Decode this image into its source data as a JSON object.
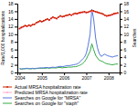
{
  "chart_data": {
    "type": "line",
    "ylabel": "Rate/1,000 hospitalizations",
    "y2label": "Searches",
    "xlim": [
      2003.9,
      2008.5
    ],
    "xticks": [
      2004,
      2005,
      2006,
      2007,
      2008
    ],
    "ylim": [
      0,
      18
    ],
    "yticks": [
      0,
      2,
      4,
      6,
      8,
      10,
      12,
      14,
      16,
      18
    ],
    "y2lim": [
      0,
      18
    ],
    "y2ticks": [
      0,
      2,
      4,
      6,
      8,
      10,
      12,
      14,
      16,
      18
    ],
    "grid": false,
    "legend": "bottom",
    "x": [
      2004.0,
      2004.08,
      2004.17,
      2004.25,
      2004.33,
      2004.42,
      2004.5,
      2004.58,
      2004.67,
      2004.75,
      2004.83,
      2004.92,
      2005.0,
      2005.08,
      2005.17,
      2005.25,
      2005.33,
      2005.42,
      2005.5,
      2005.58,
      2005.67,
      2005.75,
      2005.83,
      2005.92,
      2006.0,
      2006.08,
      2006.17,
      2006.25,
      2006.33,
      2006.42,
      2006.5,
      2006.58,
      2006.67,
      2006.75,
      2006.83,
      2006.92,
      2007.0,
      2007.08,
      2007.17,
      2007.25,
      2007.33,
      2007.42,
      2007.5,
      2007.58,
      2007.67,
      2007.75,
      2007.83,
      2007.92,
      2008.0,
      2008.08,
      2008.17,
      2008.25,
      2008.33,
      2008.42
    ],
    "series": [
      {
        "name": "Actual MRSA hospitalization rate",
        "color": "#cc2200",
        "marker": "circle",
        "values": [
          11.5,
          11.8,
          12.0,
          12.3,
          12.1,
          12.4,
          12.2,
          12.5,
          12.6,
          13.0,
          13.2,
          13.5,
          13.3,
          13.5,
          13.8,
          14.0,
          13.7,
          14.2,
          14.5,
          14.3,
          14.1,
          14.5,
          14.8,
          14.6,
          14.7,
          14.9,
          15.0,
          15.2,
          15.0,
          15.3,
          15.5,
          15.4,
          15.6,
          15.7,
          15.8,
          15.9,
          15.7,
          15.8,
          16.0,
          16.2,
          16.1,
          15.9,
          15.8,
          15.6,
          15.5,
          15.3,
          15.0,
          14.8,
          14.9,
          15.0,
          15.2,
          15.4,
          15.5,
          15.6
        ]
      },
      {
        "name": "Predicted MRSA hospitalization rate",
        "color": "#ffaacc",
        "marker": "circle",
        "values": [
          11.3,
          11.6,
          11.9,
          12.1,
          12.0,
          12.2,
          12.1,
          12.4,
          12.5,
          12.9,
          13.1,
          13.3,
          13.2,
          13.4,
          13.7,
          13.9,
          13.6,
          14.0,
          14.3,
          14.2,
          14.0,
          14.4,
          14.7,
          14.5,
          14.6,
          14.8,
          14.9,
          15.1,
          14.9,
          15.1,
          15.3,
          15.2,
          15.4,
          15.5,
          15.6,
          15.7,
          15.5,
          15.7,
          15.8,
          16.0,
          15.9,
          15.8,
          15.6,
          15.5,
          15.3,
          15.2,
          14.9,
          14.7,
          14.8,
          14.9,
          15.0,
          15.2,
          15.3,
          15.4
        ]
      },
      {
        "name": "Searches on Google for \"MRSA\"",
        "color": "#5577dd",
        "axis": "y2",
        "values": [
          1.0,
          0.9,
          1.0,
          1.0,
          1.1,
          1.0,
          1.0,
          1.1,
          1.0,
          1.1,
          1.1,
          1.2,
          1.2,
          1.2,
          1.3,
          1.3,
          1.2,
          1.3,
          1.4,
          1.3,
          1.4,
          1.5,
          1.6,
          1.5,
          1.6,
          1.7,
          1.8,
          1.8,
          1.9,
          2.0,
          2.1,
          2.2,
          2.5,
          3.0,
          3.5,
          4.0,
          5.0,
          7.0,
          10.0,
          16.5,
          14.0,
          9.0,
          6.5,
          5.0,
          4.2,
          4.5,
          4.8,
          4.5,
          4.3,
          4.2,
          4.0,
          4.2,
          4.3,
          4.4
        ]
      },
      {
        "name": "Searches on Google for \"staph\"",
        "color": "#33aa44",
        "axis": "y2",
        "values": [
          1.0,
          0.9,
          0.95,
          1.0,
          1.0,
          1.0,
          0.95,
          1.0,
          1.0,
          1.0,
          1.1,
          1.1,
          1.1,
          1.1,
          1.1,
          1.2,
          1.1,
          1.2,
          1.2,
          1.2,
          1.2,
          1.3,
          1.3,
          1.2,
          1.3,
          1.3,
          1.4,
          1.4,
          1.4,
          1.5,
          1.5,
          1.6,
          1.8,
          2.0,
          2.3,
          2.8,
          3.5,
          4.5,
          5.5,
          7.5,
          6.0,
          4.5,
          3.8,
          3.2,
          3.0,
          2.8,
          2.5,
          2.3,
          2.2,
          2.1,
          2.0,
          2.1,
          2.2,
          2.2
        ]
      }
    ]
  }
}
